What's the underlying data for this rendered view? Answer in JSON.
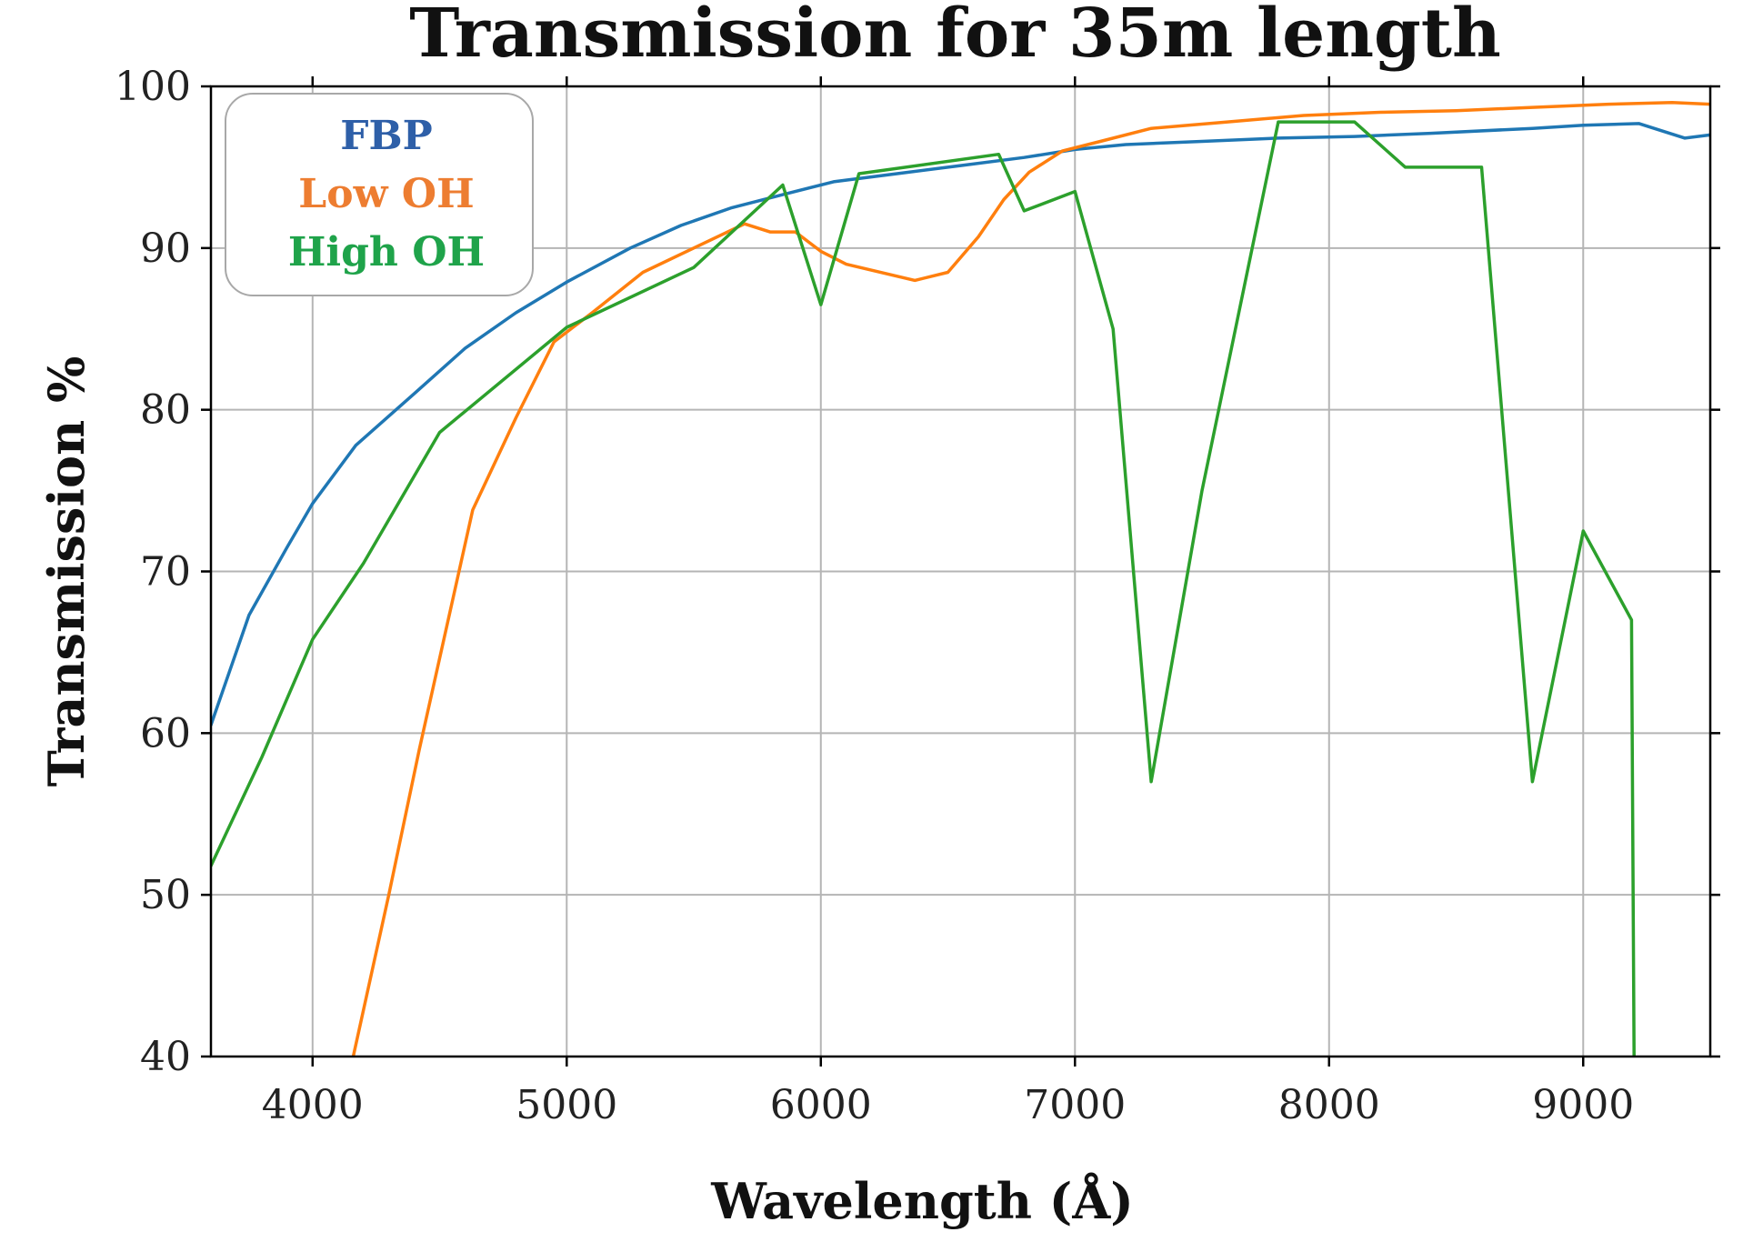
{
  "chart_data": {
    "type": "line",
    "title": "Transmission for 35m length",
    "xlabel": "Wavelength (Å)",
    "ylabel": "Transmission %",
    "xlim": [
      3600,
      9500
    ],
    "ylim": [
      40,
      100
    ],
    "xticks": [
      4000,
      5000,
      6000,
      7000,
      8000,
      9000
    ],
    "yticks": [
      40,
      50,
      60,
      70,
      80,
      90,
      100
    ],
    "grid": true,
    "legend_position": "top-left",
    "series": [
      {
        "name": "FBP",
        "color": "#1f77b4",
        "legend_color": "#2e5fa8",
        "x": [
          3600,
          3750,
          3900,
          4000,
          4170,
          4400,
          4600,
          4800,
          5000,
          5250,
          5450,
          5650,
          5850,
          6050,
          6300,
          6550,
          6800,
          7000,
          7200,
          7500,
          7800,
          8100,
          8400,
          8800,
          9000,
          9220,
          9400,
          9500
        ],
        "y": [
          60.5,
          67.3,
          71.5,
          74.2,
          77.8,
          81.0,
          83.8,
          86.0,
          87.9,
          90.0,
          91.4,
          92.5,
          93.3,
          94.1,
          94.6,
          95.1,
          95.6,
          96.1,
          96.4,
          96.6,
          96.8,
          96.9,
          97.1,
          97.4,
          97.6,
          97.7,
          96.8,
          97.0
        ]
      },
      {
        "name": "Low OH",
        "color": "#ff7f0e",
        "legend_color": "#ed7d31",
        "x": [
          4160,
          4300,
          4420,
          4630,
          4800,
          4950,
          5100,
          5300,
          5500,
          5700,
          5800,
          5900,
          6000,
          6100,
          6370,
          6500,
          6620,
          6720,
          6820,
          6950,
          7100,
          7300,
          7600,
          7900,
          8200,
          8500,
          8800,
          9100,
          9350,
          9500
        ],
        "y": [
          40,
          50,
          59,
          73.8,
          79.5,
          84.2,
          86.0,
          88.5,
          90.0,
          91.5,
          91.0,
          91.0,
          89.8,
          89.0,
          88.0,
          88.5,
          90.7,
          93.0,
          94.7,
          96.0,
          96.6,
          97.4,
          97.8,
          98.2,
          98.4,
          98.5,
          98.7,
          98.9,
          99.0,
          98.9
        ]
      },
      {
        "name": "High OH",
        "color": "#2ca02c",
        "legend_color": "#1fa34a",
        "x": [
          3600,
          3800,
          4000,
          4200,
          4500,
          5000,
          5500,
          5850,
          6000,
          6150,
          6700,
          6800,
          7000,
          7150,
          7300,
          7500,
          7800,
          8100,
          8300,
          8600,
          8800,
          9000,
          9190,
          9200
        ],
        "y": [
          51.8,
          58.5,
          65.8,
          70.5,
          78.6,
          85.1,
          88.8,
          93.9,
          86.5,
          94.6,
          95.8,
          92.3,
          93.5,
          85.0,
          57.0,
          75.0,
          97.8,
          97.8,
          95.0,
          95.0,
          57.0,
          72.5,
          67.0,
          40.0
        ]
      }
    ]
  }
}
